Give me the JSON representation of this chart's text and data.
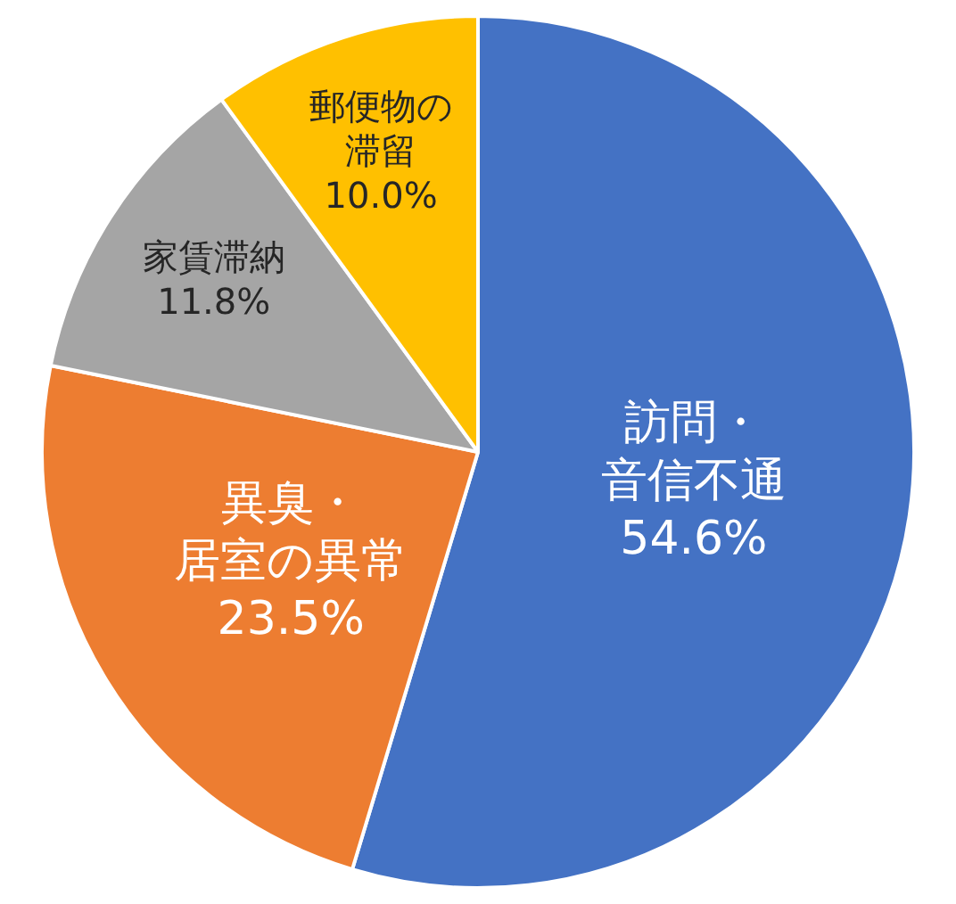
{
  "chart_data": {
    "type": "pie",
    "categories": [
      "訪問・音信不通",
      "異臭・居室の異常",
      "家賃滞納",
      "郵便物の滞留"
    ],
    "values": [
      54.6,
      23.5,
      11.8,
      10.0
    ],
    "value_labels": [
      "54.6%",
      "23.5%",
      "11.8%",
      "10.0%"
    ],
    "colors": [
      "#4472c4",
      "#ed7d31",
      "#a5a5a5",
      "#ffc000"
    ],
    "legend": false
  }
}
